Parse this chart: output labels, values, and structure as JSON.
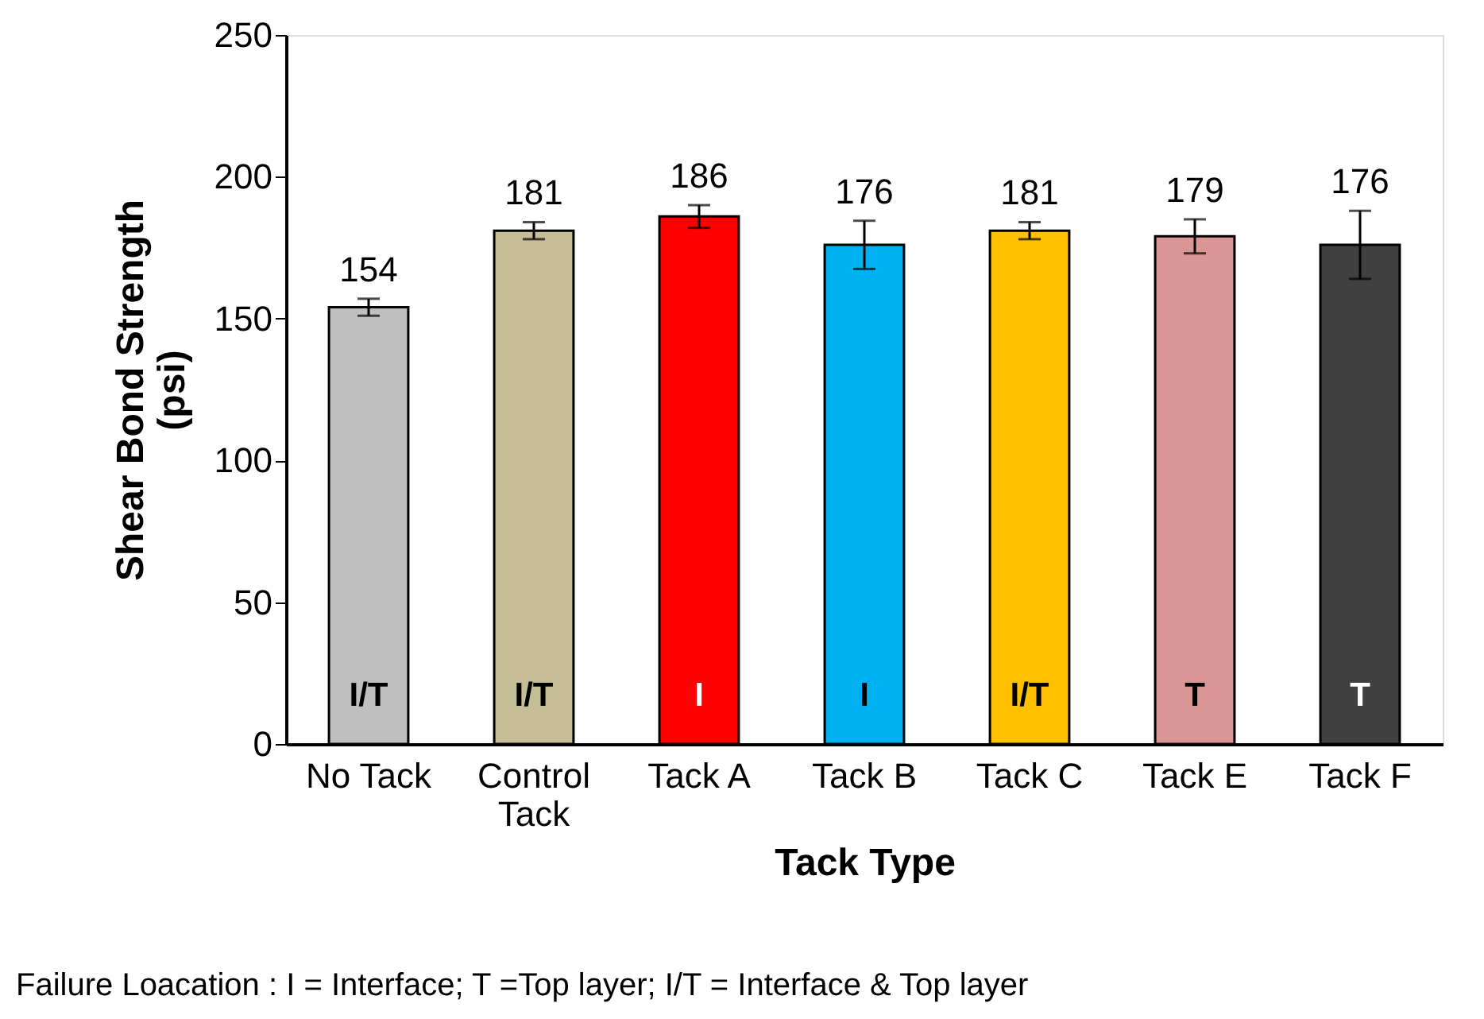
{
  "chart_data": {
    "type": "bar",
    "categories": [
      "No Tack",
      "Control\nTack",
      "Tack A",
      "Tack B",
      "Tack C",
      "Tack E",
      "Tack F"
    ],
    "values": [
      154,
      181,
      186,
      176,
      181,
      179,
      176
    ],
    "colors": [
      "#bfbfbf",
      "#c4bd97",
      "#ff0000",
      "#00b0f0",
      "#ffc000",
      "#da9694",
      "#404040"
    ],
    "errors": [
      3,
      3,
      4,
      8.5,
      3,
      6,
      12
    ],
    "data_labels": true,
    "xlabel": "Tack Type",
    "ylabel": "Shear Bond Strength\n(psi)",
    "ylim": [
      0,
      250
    ],
    "yticks": [
      0,
      50,
      100,
      150,
      200,
      250
    ],
    "grid": false,
    "annotations": [
      "I/T",
      "I/T",
      "I",
      "I",
      "I/T",
      "T",
      "T",
      "Failure Loacation : I = Interface; T =Top layer;  I/T = Interface & Top layer"
    ]
  }
}
